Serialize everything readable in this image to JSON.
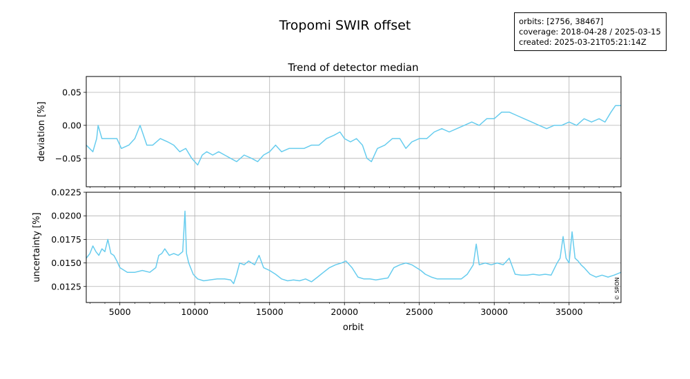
{
  "figure": {
    "title": "Tropomi SWIR offset",
    "info_lines": [
      "orbits: [2756, 38467]",
      "coverage: 2018-04-28 / 2025-03-15",
      "created: 2025-03-21T05:21:14Z"
    ],
    "copyright": "© SRON",
    "line_color": "#66ccee"
  },
  "chart_data": [
    {
      "type": "line",
      "title": "Trend of detector median",
      "xlabel": "",
      "ylabel": "deviation [%]",
      "xlim": [
        2756,
        38467
      ],
      "ylim": [
        -0.093,
        0.074
      ],
      "yticks": [
        0.05,
        0.0,
        -0.05
      ],
      "ytick_labels": [
        "0.05",
        "0.00",
        "−0.05"
      ],
      "xticks": [
        5000,
        10000,
        15000,
        20000,
        25000,
        30000,
        35000
      ],
      "grid": true,
      "series": [
        {
          "x": [
            2756,
            3200,
            3450,
            3550,
            3800,
            4300,
            4800,
            5100,
            5600,
            6000,
            6350,
            6500,
            6800,
            7200,
            7700,
            8200,
            8600,
            9000,
            9400,
            9800,
            10200,
            10500,
            10800,
            11200,
            11600,
            12000,
            12400,
            12800,
            13300,
            13800,
            14200,
            14600,
            15000,
            15400,
            15800,
            16300,
            16800,
            17300,
            17800,
            18300,
            18800,
            19300,
            19700,
            20000,
            20400,
            20800,
            21200,
            21500,
            21800,
            22200,
            22700,
            23200,
            23700,
            24100,
            24500,
            25000,
            25500,
            26000,
            26500,
            27000,
            27500,
            28000,
            28500,
            29000,
            29500,
            30000,
            30500,
            31000,
            31500,
            32000,
            32500,
            33000,
            33500,
            34000,
            34500,
            35000,
            35500,
            36000,
            36500,
            37000,
            37400,
            37800,
            38100,
            38467
          ],
          "values": [
            -0.03,
            -0.04,
            -0.02,
            0.0,
            -0.02,
            -0.02,
            -0.02,
            -0.035,
            -0.03,
            -0.02,
            0.0,
            -0.01,
            -0.03,
            -0.03,
            -0.02,
            -0.025,
            -0.03,
            -0.04,
            -0.035,
            -0.05,
            -0.06,
            -0.045,
            -0.04,
            -0.045,
            -0.04,
            -0.045,
            -0.05,
            -0.055,
            -0.045,
            -0.05,
            -0.055,
            -0.045,
            -0.04,
            -0.03,
            -0.04,
            -0.035,
            -0.035,
            -0.035,
            -0.03,
            -0.03,
            -0.02,
            -0.015,
            -0.01,
            -0.02,
            -0.025,
            -0.02,
            -0.03,
            -0.05,
            -0.055,
            -0.035,
            -0.03,
            -0.02,
            -0.02,
            -0.035,
            -0.025,
            -0.02,
            -0.02,
            -0.01,
            -0.005,
            -0.01,
            -0.005,
            0.0,
            0.005,
            0.0,
            0.01,
            0.01,
            0.02,
            0.02,
            0.015,
            0.01,
            0.005,
            0.0,
            -0.005,
            0.0,
            0.0,
            0.005,
            0.0,
            0.01,
            0.005,
            0.01,
            0.005,
            0.02,
            0.03,
            0.03
          ]
        }
      ]
    },
    {
      "type": "line",
      "title": "",
      "xlabel": "orbit",
      "ylabel": "uncertainty [%]",
      "xlim": [
        2756,
        38467
      ],
      "ylim": [
        0.0108,
        0.0225
      ],
      "yticks": [
        0.0225,
        0.02,
        0.0175,
        0.015,
        0.0125
      ],
      "ytick_labels": [
        "0.0225",
        "0.0200",
        "0.0175",
        "0.0150",
        "0.0125"
      ],
      "xticks": [
        5000,
        10000,
        15000,
        20000,
        25000,
        30000,
        35000
      ],
      "xtick_labels": [
        "5000",
        "10000",
        "15000",
        "20000",
        "25000",
        "30000",
        "35000"
      ],
      "grid": true,
      "series": [
        {
          "x": [
            2756,
            3000,
            3200,
            3400,
            3600,
            3800,
            4000,
            4200,
            4400,
            4600,
            4800,
            5000,
            5500,
            6000,
            6500,
            7000,
            7400,
            7600,
            7800,
            8000,
            8300,
            8600,
            8900,
            9200,
            9350,
            9450,
            9600,
            9900,
            10200,
            10600,
            11000,
            11500,
            12000,
            12400,
            12600,
            12800,
            13000,
            13300,
            13600,
            14000,
            14300,
            14600,
            15000,
            15400,
            15800,
            16200,
            16600,
            17000,
            17400,
            17800,
            18200,
            18600,
            19000,
            19400,
            19800,
            20100,
            20500,
            20900,
            21300,
            21700,
            22100,
            22500,
            22900,
            23300,
            23700,
            24100,
            24500,
            24800,
            25100,
            25400,
            25800,
            26200,
            26600,
            27000,
            27400,
            27800,
            28200,
            28600,
            28800,
            29000,
            29400,
            29800,
            30200,
            30600,
            31000,
            31400,
            31800,
            32200,
            32600,
            33000,
            33400,
            33800,
            34200,
            34400,
            34600,
            34800,
            35000,
            35200,
            35400,
            35600,
            35800,
            36000,
            36400,
            36800,
            37200,
            37600,
            38000,
            38467
          ],
          "values": [
            0.0155,
            0.016,
            0.0168,
            0.0162,
            0.0158,
            0.0165,
            0.0162,
            0.0175,
            0.016,
            0.0158,
            0.0152,
            0.0145,
            0.014,
            0.014,
            0.0142,
            0.014,
            0.0145,
            0.0158,
            0.016,
            0.0165,
            0.0158,
            0.016,
            0.0158,
            0.0162,
            0.0205,
            0.016,
            0.015,
            0.0138,
            0.0133,
            0.0131,
            0.0132,
            0.0133,
            0.0133,
            0.0132,
            0.0128,
            0.0138,
            0.015,
            0.0148,
            0.0152,
            0.0148,
            0.0158,
            0.0145,
            0.0142,
            0.0138,
            0.0133,
            0.0131,
            0.0132,
            0.0131,
            0.0133,
            0.013,
            0.0135,
            0.014,
            0.0145,
            0.0148,
            0.015,
            0.0152,
            0.0145,
            0.0135,
            0.0133,
            0.0133,
            0.0132,
            0.0133,
            0.0134,
            0.0145,
            0.0148,
            0.015,
            0.0148,
            0.0145,
            0.0142,
            0.0138,
            0.0135,
            0.0133,
            0.0133,
            0.0133,
            0.0133,
            0.0133,
            0.0138,
            0.0148,
            0.017,
            0.0148,
            0.015,
            0.0148,
            0.015,
            0.0148,
            0.0155,
            0.0138,
            0.0137,
            0.0137,
            0.0138,
            0.0137,
            0.0138,
            0.0137,
            0.015,
            0.0155,
            0.0178,
            0.0155,
            0.015,
            0.0183,
            0.0155,
            0.0152,
            0.0148,
            0.0145,
            0.0138,
            0.0135,
            0.0137,
            0.0135,
            0.0137,
            0.014
          ]
        }
      ]
    }
  ]
}
